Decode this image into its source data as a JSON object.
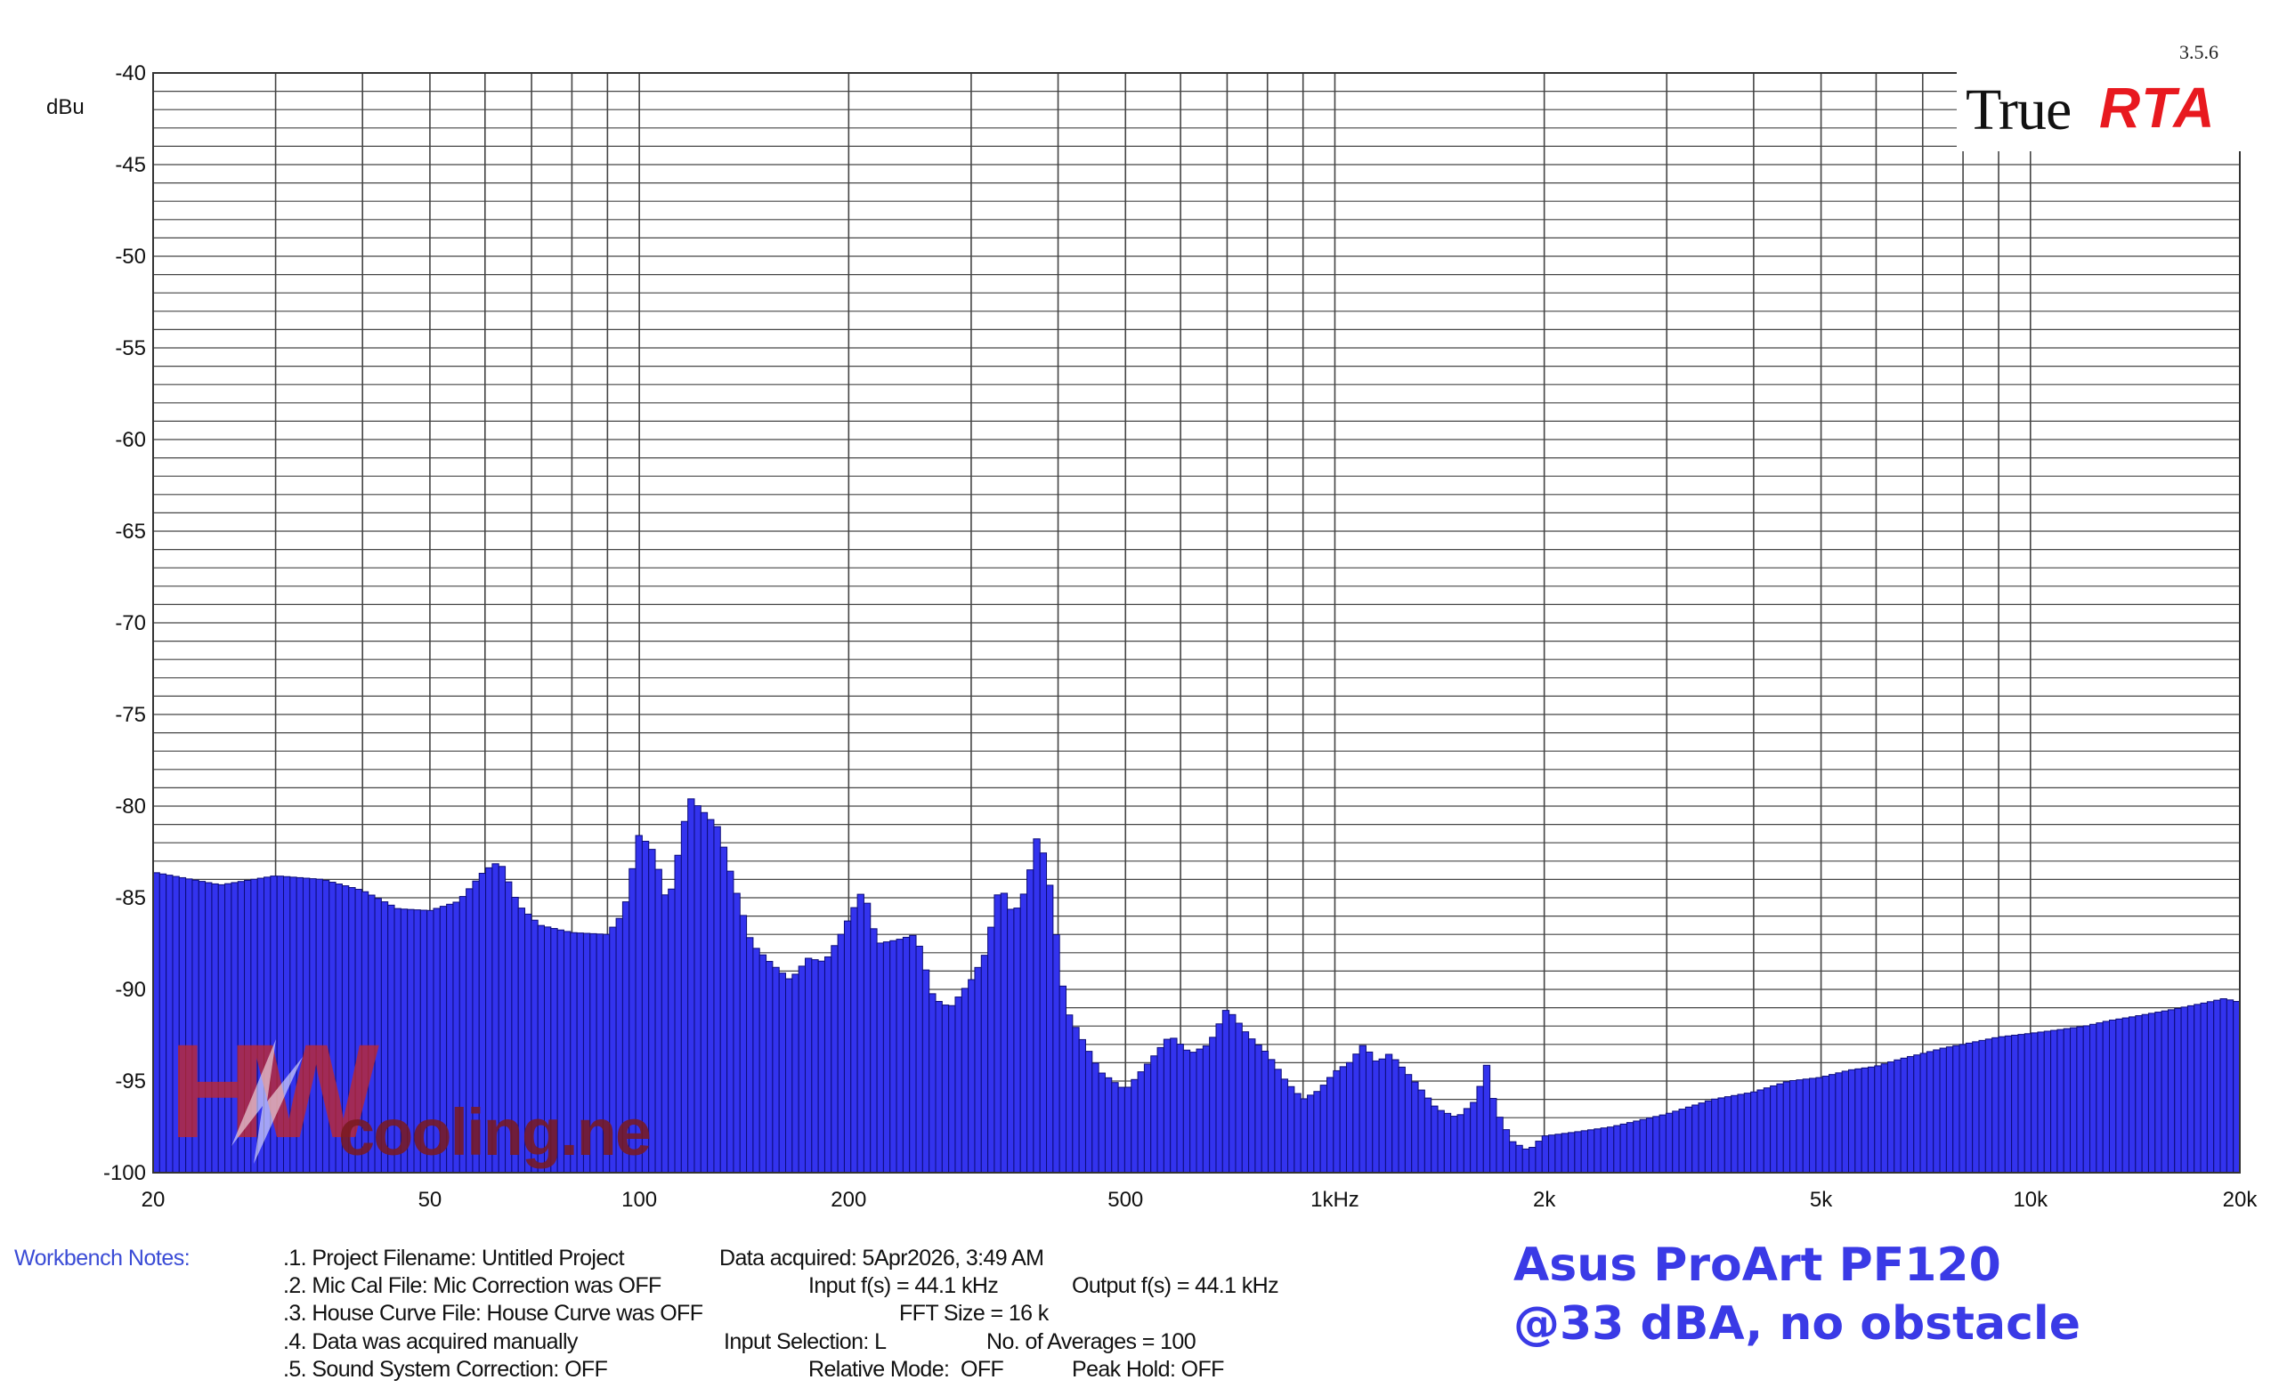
{
  "app": {
    "version": "3.5.6",
    "logo_true": "True",
    "logo_rta": "RTA",
    "watermark_text": "cooling.net",
    "watermark_letters": "HW"
  },
  "chart_data": {
    "type": "bar",
    "title": "",
    "ylabel": "dBu",
    "xlabel": "",
    "x_scale": "log",
    "xlim": [
      20,
      20000
    ],
    "ylim": [
      -100,
      -40
    ],
    "grid": true,
    "y_ticks": [
      -40,
      -45,
      -50,
      -55,
      -60,
      -65,
      -70,
      -75,
      -80,
      -85,
      -90,
      -95,
      -100
    ],
    "x_ticks": [
      {
        "value": 20,
        "label": "20"
      },
      {
        "value": 50,
        "label": "50"
      },
      {
        "value": 100,
        "label": "100"
      },
      {
        "value": 200,
        "label": "200"
      },
      {
        "value": 500,
        "label": "500"
      },
      {
        "value": 1000,
        "label": "1kHz"
      },
      {
        "value": 2000,
        "label": "2k"
      },
      {
        "value": 5000,
        "label": "5k"
      },
      {
        "value": 10000,
        "label": "10k"
      },
      {
        "value": 20000,
        "label": "20k"
      }
    ],
    "bar_color": "#3333ee",
    "series": [
      {
        "values": [
          [
            20,
            -83.6
          ],
          [
            25,
            -84.3
          ],
          [
            30,
            -83.8
          ],
          [
            35,
            -84.0
          ],
          [
            40,
            -84.6
          ],
          [
            45,
            -85.6
          ],
          [
            50,
            -85.7
          ],
          [
            55,
            -85.2
          ],
          [
            60,
            -83.5
          ],
          [
            63,
            -83.0
          ],
          [
            67,
            -85.4
          ],
          [
            72,
            -86.5
          ],
          [
            80,
            -86.9
          ],
          [
            90,
            -87.0
          ],
          [
            95,
            -85.8
          ],
          [
            100,
            -81.5
          ],
          [
            105,
            -82.5
          ],
          [
            110,
            -85.5
          ],
          [
            118,
            -79.5
          ],
          [
            125,
            -80.5
          ],
          [
            130,
            -81.2
          ],
          [
            135,
            -83.5
          ],
          [
            145,
            -87.5
          ],
          [
            155,
            -88.6
          ],
          [
            165,
            -89.5
          ],
          [
            175,
            -88.3
          ],
          [
            185,
            -88.5
          ],
          [
            195,
            -87.0
          ],
          [
            210,
            -84.5
          ],
          [
            220,
            -87.5
          ],
          [
            235,
            -87.3
          ],
          [
            250,
            -87.0
          ],
          [
            265,
            -90.5
          ],
          [
            280,
            -91.0
          ],
          [
            300,
            -89.5
          ],
          [
            315,
            -88.0
          ],
          [
            330,
            -84.2
          ],
          [
            345,
            -86.0
          ],
          [
            360,
            -84.5
          ],
          [
            375,
            -81.3
          ],
          [
            390,
            -84.5
          ],
          [
            410,
            -91.0
          ],
          [
            430,
            -92.5
          ],
          [
            460,
            -94.5
          ],
          [
            500,
            -95.5
          ],
          [
            540,
            -94.0
          ],
          [
            580,
            -92.5
          ],
          [
            620,
            -93.5
          ],
          [
            660,
            -93.0
          ],
          [
            700,
            -91.0
          ],
          [
            750,
            -92.5
          ],
          [
            800,
            -93.5
          ],
          [
            850,
            -95.0
          ],
          [
            900,
            -96.0
          ],
          [
            950,
            -95.5
          ],
          [
            1000,
            -94.5
          ],
          [
            1050,
            -94.0
          ],
          [
            1100,
            -93.0
          ],
          [
            1150,
            -94.0
          ],
          [
            1200,
            -93.5
          ],
          [
            1300,
            -95.0
          ],
          [
            1400,
            -96.5
          ],
          [
            1500,
            -97.0
          ],
          [
            1600,
            -96.0
          ],
          [
            1650,
            -94.0
          ],
          [
            1700,
            -96.5
          ],
          [
            1800,
            -98.3
          ],
          [
            1900,
            -98.8
          ],
          [
            2000,
            -98.0
          ],
          [
            2200,
            -97.8
          ],
          [
            2500,
            -97.5
          ],
          [
            3000,
            -96.8
          ],
          [
            3500,
            -96.0
          ],
          [
            4000,
            -95.6
          ],
          [
            4500,
            -95.0
          ],
          [
            5000,
            -94.8
          ],
          [
            5500,
            -94.4
          ],
          [
            6000,
            -94.2
          ],
          [
            6500,
            -93.8
          ],
          [
            7000,
            -93.5
          ],
          [
            7500,
            -93.2
          ],
          [
            8000,
            -93.0
          ],
          [
            9000,
            -92.6
          ],
          [
            10000,
            -92.4
          ],
          [
            11000,
            -92.2
          ],
          [
            12000,
            -92.0
          ],
          [
            13000,
            -91.7
          ],
          [
            14000,
            -91.5
          ],
          [
            16000,
            -91.1
          ],
          [
            18000,
            -90.7
          ],
          [
            19000,
            -90.5
          ],
          [
            20000,
            -90.7
          ]
        ]
      }
    ]
  },
  "notes": {
    "label": "Workbench Notes:",
    "lines": [
      {
        "left": ".1. Project Filename: Untitled Project",
        "mid": "Data acquired: 5Apr2026, 3:49 AM",
        "right": ""
      },
      {
        "left": ".2. Mic Cal File: Mic Correction was OFF",
        "mid": "Input f(s) = 44.1 kHz",
        "right": "Output f(s) = 44.1 kHz"
      },
      {
        "left": ".3. House Curve File: House Curve was OFF",
        "mid": "FFT Size = 16 k",
        "right": ""
      },
      {
        "left": ".4. Data was acquired manually",
        "mid": "Input Selection: L",
        "right": "No. of Averages = 100"
      },
      {
        "left": ".5. Sound System Correction: OFF",
        "mid": "Relative Mode:  OFF",
        "right": "Peak Hold: OFF"
      }
    ]
  },
  "caption": {
    "line1": "Asus ProArt PF120",
    "line2": "@33 dBA, no obstacle"
  }
}
